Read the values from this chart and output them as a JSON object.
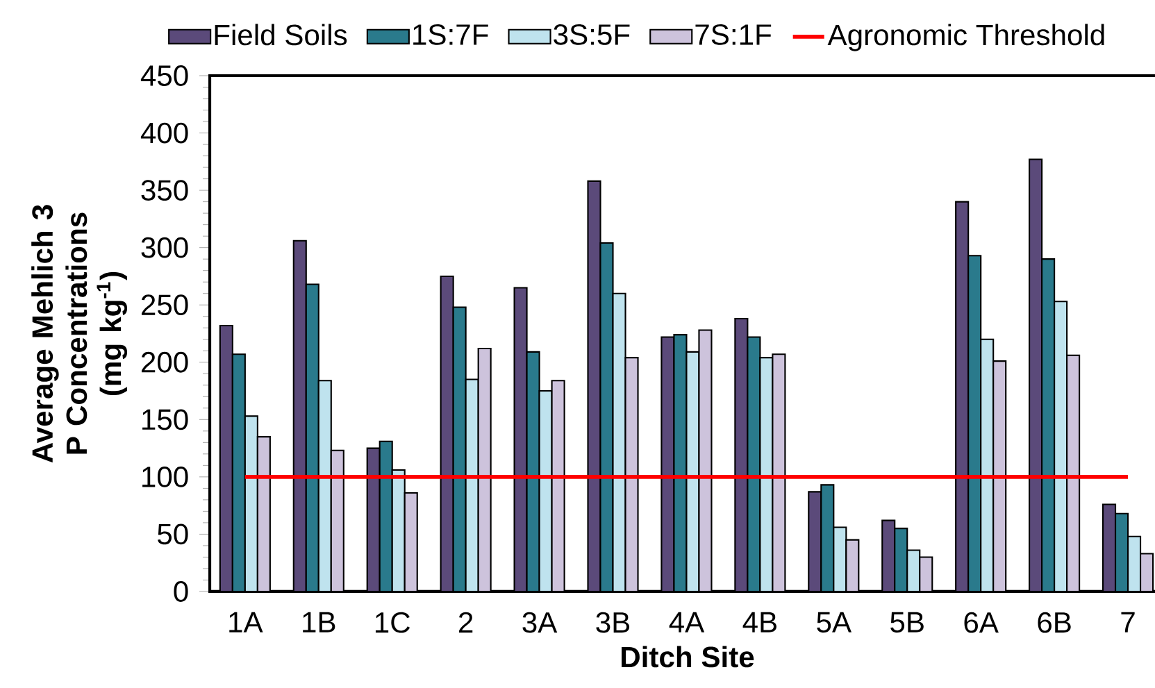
{
  "chart_data": {
    "type": "bar",
    "xlabel": "Ditch Site",
    "ylabel": "Average Mehlich 3 P Concentrations (mg kg$^{-1}$)",
    "categories": [
      "1A",
      "1B",
      "1C",
      "2",
      "3A",
      "3B",
      "4A",
      "4B",
      "5A",
      "5B",
      "6A",
      "6B",
      "7"
    ],
    "series": [
      {
        "name": "Field Soils",
        "color": "#5b4a7a",
        "values": [
          232,
          306,
          125,
          275,
          265,
          358,
          222,
          238,
          87,
          62,
          340,
          377,
          76
        ]
      },
      {
        "name": "1S:7F",
        "color": "#2a7a8c",
        "values": [
          207,
          268,
          131,
          248,
          209,
          304,
          224,
          222,
          93,
          55,
          293,
          290,
          68
        ]
      },
      {
        "name": "3S:5F",
        "color": "#bfe3ee",
        "values": [
          153,
          184,
          106,
          185,
          175,
          260,
          209,
          204,
          56,
          36,
          220,
          253,
          48
        ]
      },
      {
        "name": "7S:1F",
        "color": "#cdc3dc",
        "values": [
          135,
          123,
          86,
          212,
          184,
          204,
          228,
          207,
          45,
          30,
          201,
          206,
          33
        ]
      },
      {
        "name": "Agronomic Threshold",
        "type": "line",
        "color": "#ff0000",
        "values": [
          100,
          100,
          100,
          100,
          100,
          100,
          100,
          100,
          100,
          100,
          100,
          100,
          100
        ]
      }
    ],
    "ylim": [
      0,
      450
    ],
    "yticks": [
      0,
      50,
      100,
      150,
      200,
      250,
      300,
      350,
      400,
      450
    ],
    "legend": "top",
    "grid": false,
    "marker": "none"
  }
}
